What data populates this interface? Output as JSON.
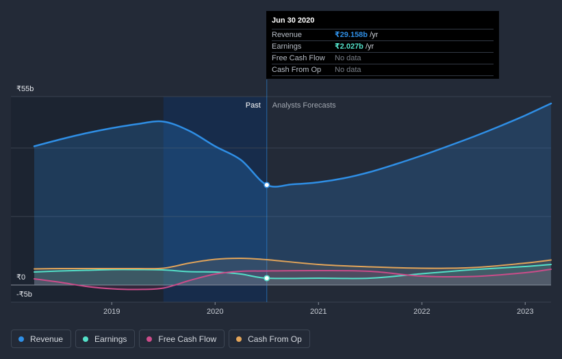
{
  "tooltip": {
    "date": "Jun 30 2020",
    "rows": [
      {
        "name": "Revenue",
        "value": "₹29.158b",
        "unit": " /yr",
        "color": "#2f8fe6"
      },
      {
        "name": "Earnings",
        "value": "₹2.027b",
        "unit": " /yr",
        "color": "#54e1c9"
      },
      {
        "name": "Free Cash Flow",
        "value": "No data",
        "unit": "",
        "color": ""
      },
      {
        "name": "Cash From Op",
        "value": "No data",
        "unit": "",
        "color": ""
      }
    ]
  },
  "legend": [
    {
      "label": "Revenue",
      "color": "#2f8fe6"
    },
    {
      "label": "Earnings",
      "color": "#54e1c9"
    },
    {
      "label": "Free Cash Flow",
      "color": "#cc4c8a"
    },
    {
      "label": "Cash From Op",
      "color": "#e3a55a"
    }
  ],
  "chart_data": {
    "type": "line",
    "title": "",
    "xlabel": "",
    "ylabel": "",
    "ylim": [
      -5,
      55
    ],
    "y_tick_labels": [
      "₹55b",
      "₹0",
      "-₹5b"
    ],
    "x_tick_labels": [
      "2019",
      "2020",
      "2021",
      "2022",
      "2023"
    ],
    "x_ticks": [
      2019.0,
      2020.0,
      2021.0,
      2022.0,
      2023.0
    ],
    "xlim": [
      2018.0,
      2023.25
    ],
    "divider_x": 2020.5,
    "past_label": "Past",
    "forecast_label": "Analysts Forecasts",
    "highlight_start": 2019.5,
    "marker_x": 2020.5,
    "series": [
      {
        "name": "Revenue",
        "color": "#2f8fe6",
        "fill": true,
        "x": [
          2018.25,
          2018.5,
          2018.75,
          2019.0,
          2019.25,
          2019.5,
          2019.75,
          2020.0,
          2020.25,
          2020.5,
          2020.75,
          2021.0,
          2021.25,
          2021.5,
          2021.75,
          2022.0,
          2022.25,
          2022.5,
          2022.75,
          2023.0,
          2023.25
        ],
        "values": [
          40.5,
          42.5,
          44.3,
          45.8,
          47.0,
          47.7,
          45.0,
          40.5,
          36.5,
          29.2,
          29.4,
          30.0,
          31.2,
          33.0,
          35.3,
          37.8,
          40.5,
          43.3,
          46.3,
          49.5,
          53.0
        ]
      },
      {
        "name": "Earnings",
        "color": "#54e1c9",
        "fill": false,
        "x": [
          2018.25,
          2018.5,
          2018.75,
          2019.0,
          2019.25,
          2019.5,
          2019.75,
          2020.0,
          2020.25,
          2020.5,
          2021.0,
          2021.5,
          2022.0,
          2022.5,
          2023.0,
          2023.25
        ],
        "values": [
          3.8,
          4.1,
          4.3,
          4.5,
          4.5,
          4.4,
          3.9,
          3.8,
          3.2,
          2.0,
          2.0,
          2.0,
          3.3,
          4.5,
          5.4,
          6.0
        ]
      },
      {
        "name": "Free Cash Flow",
        "color": "#cc4c8a",
        "fill": false,
        "x": [
          2018.25,
          2018.5,
          2018.75,
          2019.0,
          2019.25,
          2019.5,
          2019.75,
          2020.0,
          2020.25,
          2020.5,
          2021.0,
          2021.5,
          2022.0,
          2022.5,
          2023.0,
          2023.25
        ],
        "values": [
          1.8,
          0.8,
          -0.4,
          -1.1,
          -1.3,
          -0.9,
          1.3,
          3.2,
          4.0,
          4.1,
          4.2,
          4.0,
          2.6,
          2.5,
          3.6,
          4.6
        ]
      },
      {
        "name": "Cash From Op",
        "color": "#e3a55a",
        "fill": false,
        "x": [
          2018.25,
          2018.5,
          2018.75,
          2019.0,
          2019.25,
          2019.5,
          2019.75,
          2020.0,
          2020.25,
          2020.5,
          2021.0,
          2021.5,
          2022.0,
          2022.5,
          2023.0,
          2023.25
        ],
        "values": [
          4.7,
          4.8,
          4.8,
          4.8,
          4.8,
          4.9,
          6.4,
          7.5,
          7.8,
          7.4,
          6.0,
          5.3,
          4.9,
          5.1,
          6.4,
          7.3
        ]
      }
    ]
  }
}
